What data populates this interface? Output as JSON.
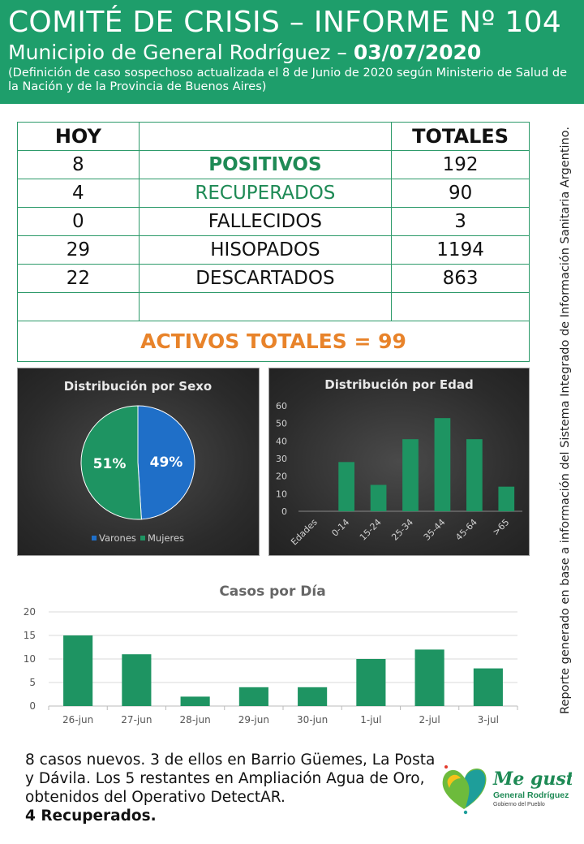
{
  "header": {
    "title": "COMITÉ DE CRISIS – INFORME Nº 104",
    "subtitle_prefix": "Municipio de General Rodríguez – ",
    "subtitle_date": "03/07/2020",
    "note": "(Definición de caso sospechoso actualizada el 8 de Junio de 2020 según Ministerio de Salud de la Nación y de la Provincia de Buenos Aires)"
  },
  "summary": {
    "col_today": "HOY",
    "col_total": "TOTALES",
    "rows": [
      {
        "today": "8",
        "label": "POSITIVOS",
        "total": "192"
      },
      {
        "today": "4",
        "label": "RECUPERADOS",
        "total": "90"
      },
      {
        "today": "0",
        "label": "FALLECIDOS",
        "total": "3"
      },
      {
        "today": "29",
        "label": "HISOPADOS",
        "total": "1194"
      },
      {
        "today": "22",
        "label": "DESCARTADOS",
        "total": "863"
      }
    ],
    "activos": "ACTIVOS TOTALES = 99"
  },
  "side_note": "Reporte generado en base a información del Sistema Integrado de Información Sanitaria Argentino.",
  "colors": {
    "green": "#1e9e6b",
    "bar_green": "#1e9462",
    "pie_blue": "#1f6fc8",
    "orange": "#e8832a"
  },
  "chart_data": [
    {
      "type": "pie",
      "title": "Distribución por Sexo",
      "categories": [
        "Varones",
        "Mujeres"
      ],
      "values": [
        49,
        51
      ],
      "labels": [
        "49%",
        "51%"
      ],
      "legend": "bottom"
    },
    {
      "type": "bar",
      "title": "Distribución por Edad",
      "categories": [
        "Edades",
        "0-14",
        "15-24",
        "25-34",
        "35-44",
        "45-64",
        ">65"
      ],
      "values": [
        0,
        28,
        15,
        41,
        53,
        41,
        14
      ],
      "yticks": [
        "0",
        "10",
        "20",
        "30",
        "40",
        "50",
        "60"
      ],
      "ylim": [
        0,
        60
      ]
    },
    {
      "type": "bar",
      "title": "Casos por Día",
      "categories": [
        "26-jun",
        "27-jun",
        "28-jun",
        "29-jun",
        "30-jun",
        "1-jul",
        "2-jul",
        "3-jul"
      ],
      "values": [
        15,
        11,
        2,
        4,
        4,
        10,
        12,
        8
      ],
      "yticks": [
        "0",
        "5",
        "10",
        "15",
        "20"
      ],
      "ylim": [
        0,
        20
      ],
      "grid": true
    }
  ],
  "footer": {
    "text": "8 casos nuevos. 3 de ellos en Barrio Güemes, La Posta y Dávila. Los 5 restantes en Ampliación Agua de Oro, obtenidos del Operativo DetectAR.",
    "bold": "4 Recuperados."
  },
  "logo": {
    "line1": "Me gusta",
    "line2": "General Rodríguez",
    "line3": "Gobierno del Pueblo"
  }
}
